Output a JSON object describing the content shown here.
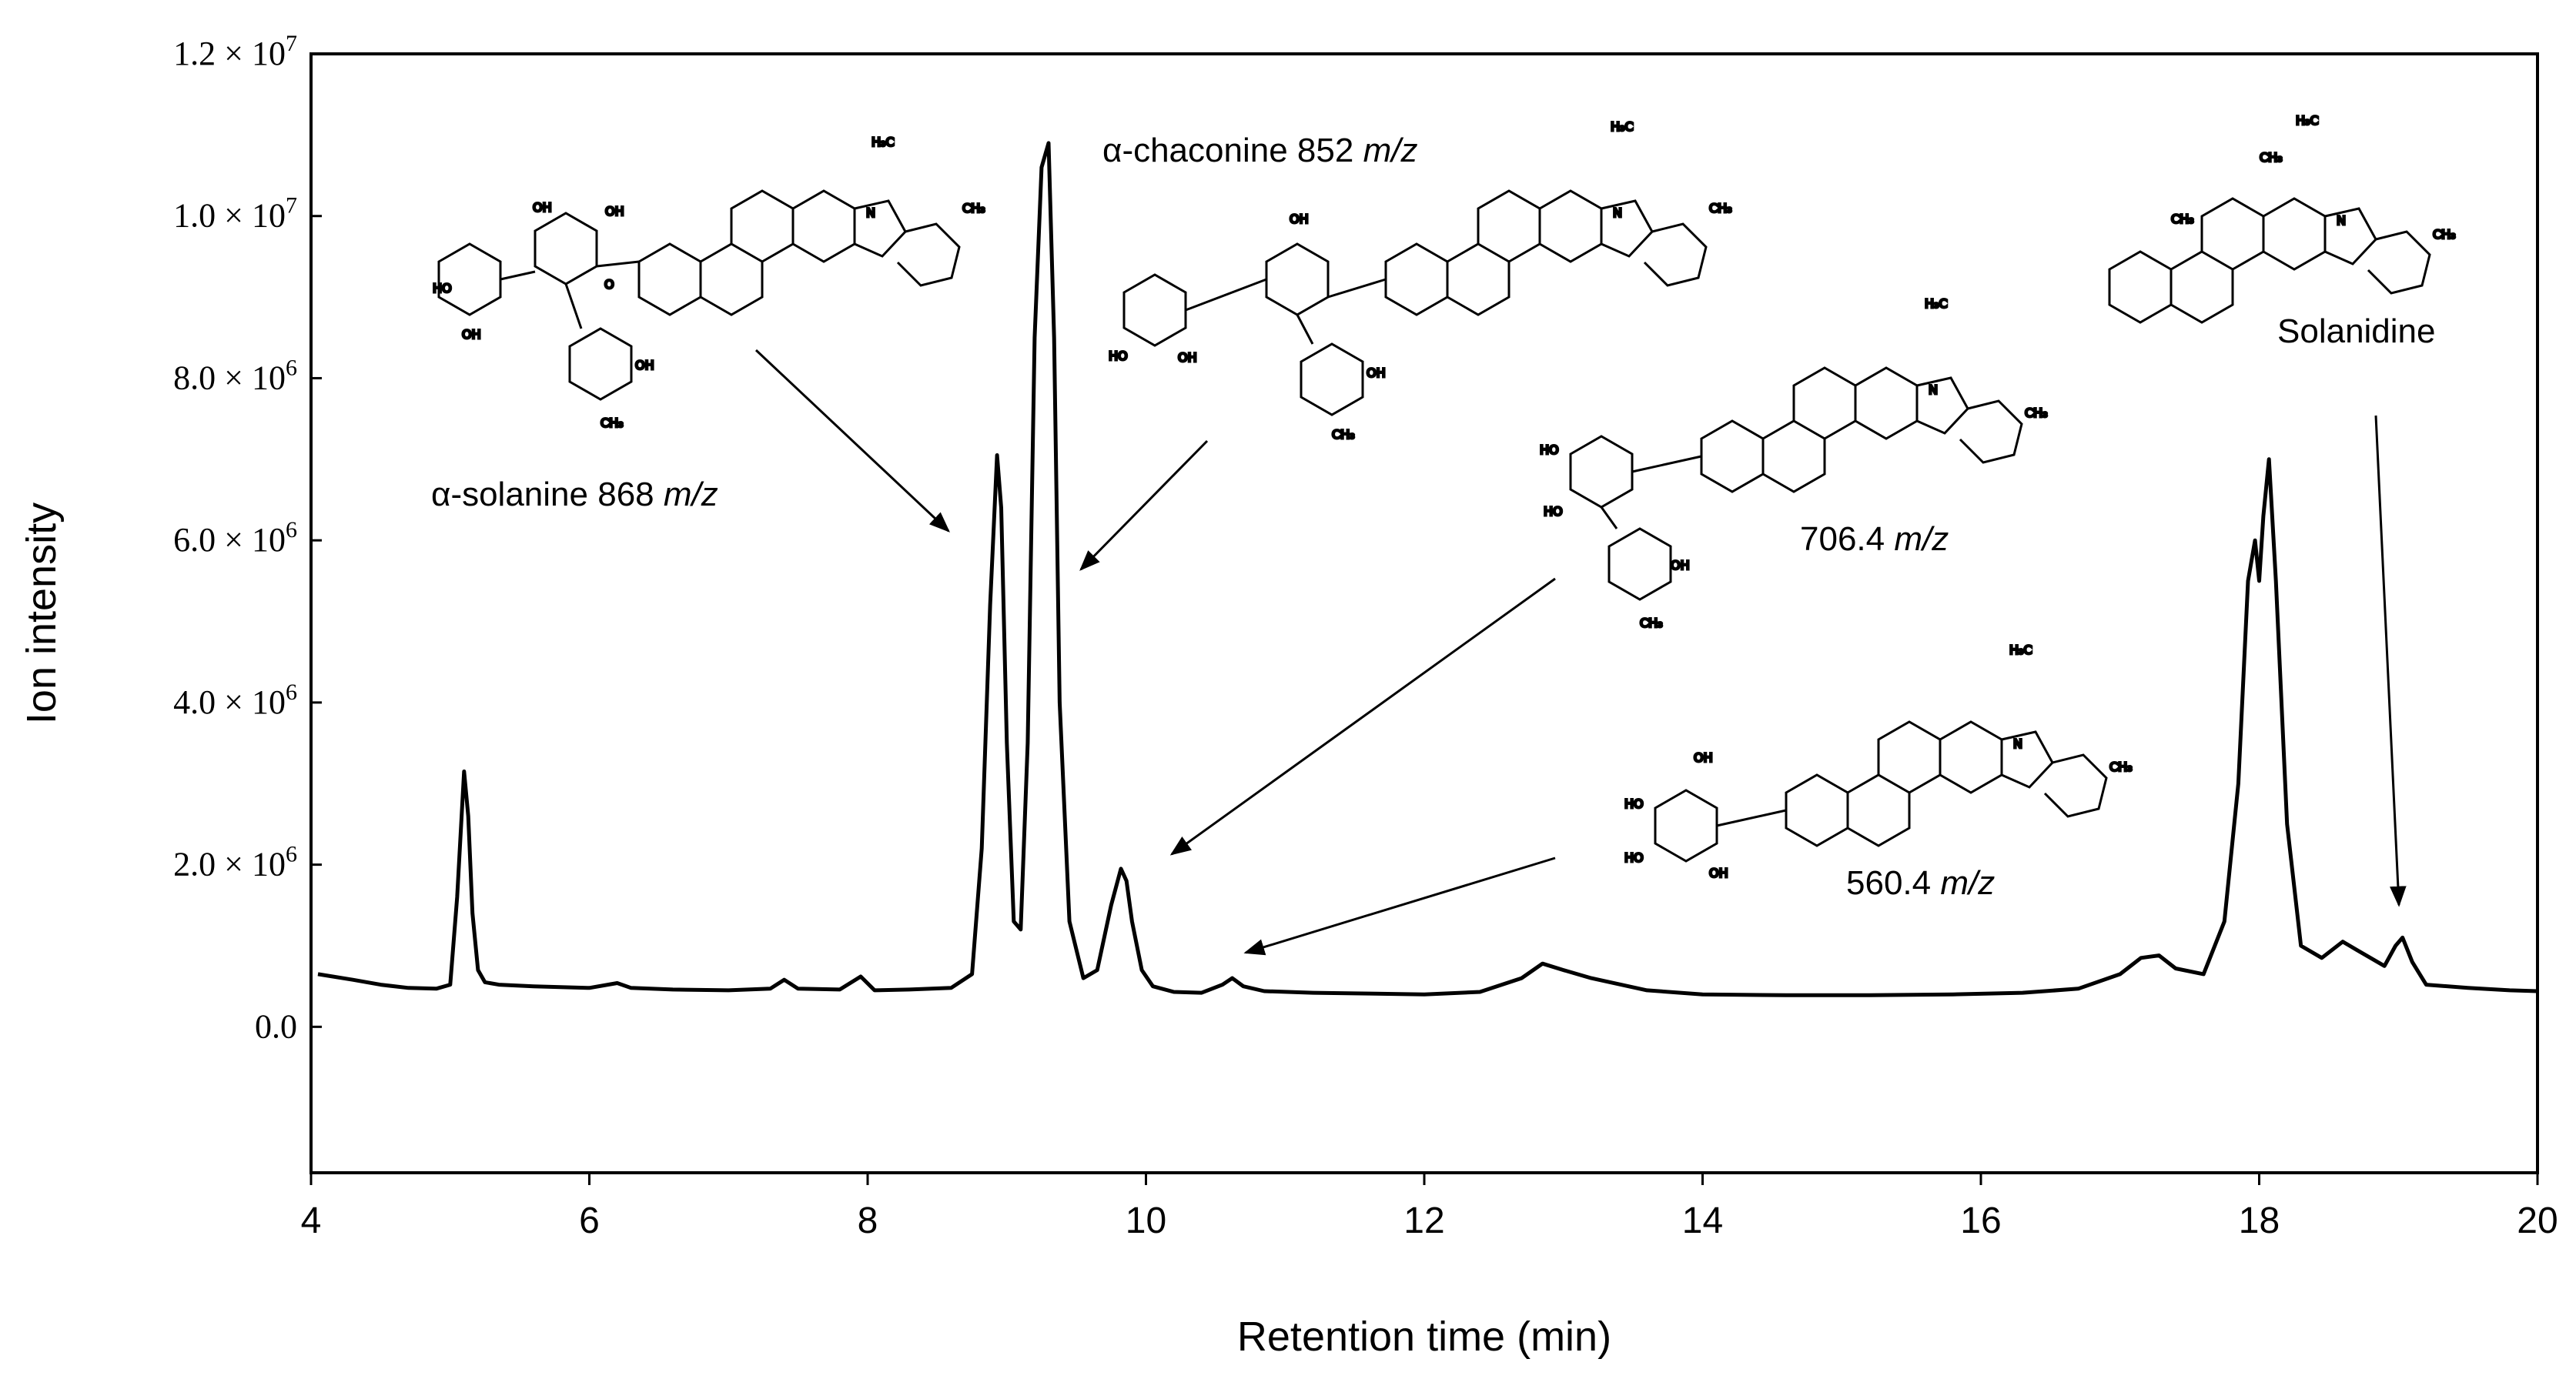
{
  "chart_data": {
    "type": "line",
    "xlabel": "Retention time (min)",
    "ylabel": "Ion intensity",
    "xlim": [
      4,
      20
    ],
    "ylim": [
      -1800000,
      12000000
    ],
    "x_ticks": [
      4,
      6,
      8,
      10,
      12,
      14,
      16,
      18,
      20
    ],
    "y_ticks": [
      {
        "value": 0,
        "label": "0.0"
      },
      {
        "value": 2000000,
        "label": "2.0 × 10",
        "exp": "6"
      },
      {
        "value": 4000000,
        "label": "4.0 × 10",
        "exp": "6"
      },
      {
        "value": 6000000,
        "label": "6.0 × 10",
        "exp": "6"
      },
      {
        "value": 8000000,
        "label": "8.0 × 10",
        "exp": "6"
      },
      {
        "value": 10000000,
        "label": "1.0 × 10",
        "exp": "7"
      },
      {
        "value": 12000000,
        "label": "1.2 × 10",
        "exp": "7"
      }
    ],
    "grid": false,
    "series": [
      {
        "color": "#000000",
        "x": [
          4.05,
          4.3,
          4.5,
          4.7,
          4.9,
          5.0,
          5.05,
          5.1,
          5.13,
          5.16,
          5.2,
          5.25,
          5.35,
          5.6,
          6.0,
          6.2,
          6.3,
          6.6,
          7.0,
          7.3,
          7.4,
          7.5,
          7.8,
          7.95,
          8.05,
          8.3,
          8.6,
          8.75,
          8.82,
          8.88,
          8.93,
          8.96,
          9.0,
          9.05,
          9.1,
          9.15,
          9.2,
          9.25,
          9.3,
          9.34,
          9.38,
          9.45,
          9.55,
          9.65,
          9.75,
          9.82,
          9.86,
          9.9,
          9.97,
          10.05,
          10.2,
          10.4,
          10.55,
          10.62,
          10.7,
          10.85,
          11.2,
          11.6,
          12.0,
          12.4,
          12.7,
          12.85,
          13.0,
          13.2,
          13.6,
          14.0,
          14.6,
          15.2,
          15.8,
          16.3,
          16.7,
          17.0,
          17.15,
          17.28,
          17.4,
          17.6,
          17.75,
          17.85,
          17.92,
          17.97,
          18.0,
          18.03,
          18.07,
          18.12,
          18.2,
          18.3,
          18.45,
          18.6,
          18.7,
          18.8,
          18.9,
          18.98,
          19.03,
          19.1,
          19.2,
          19.5,
          19.8,
          20.0
        ],
        "y": [
          650000,
          580000,
          520000,
          480000,
          470000,
          520000,
          1600000,
          3150000,
          2600000,
          1400000,
          700000,
          550000,
          520000,
          500000,
          480000,
          540000,
          480000,
          460000,
          450000,
          470000,
          580000,
          470000,
          460000,
          620000,
          450000,
          460000,
          480000,
          650000,
          2200000,
          5200000,
          7050000,
          6400000,
          3500000,
          1300000,
          1200000,
          3500000,
          8500000,
          10600000,
          10900000,
          8500000,
          4000000,
          1300000,
          600000,
          700000,
          1500000,
          1950000,
          1800000,
          1300000,
          700000,
          500000,
          430000,
          420000,
          520000,
          600000,
          500000,
          440000,
          420000,
          410000,
          400000,
          430000,
          600000,
          780000,
          700000,
          600000,
          450000,
          400000,
          390000,
          390000,
          400000,
          420000,
          470000,
          650000,
          850000,
          880000,
          720000,
          650000,
          1300000,
          3000000,
          5500000,
          6000000,
          5500000,
          6300000,
          7000000,
          5500000,
          2500000,
          1000000,
          850000,
          1050000,
          950000,
          850000,
          750000,
          1000000,
          1100000,
          800000,
          520000,
          480000,
          450000,
          440000
        ]
      }
    ],
    "annotations": [
      {
        "text": "α-solanine 868 ",
        "unit": "m/z"
      },
      {
        "text": "α-chaconine 852 ",
        "unit": "m/z"
      },
      {
        "text": "706.4 ",
        "unit": "m/z"
      },
      {
        "text": "560.4 ",
        "unit": "m/z"
      },
      {
        "text": "Solanidine",
        "unit": ""
      }
    ],
    "molecule_labels": {
      "ch3": "CH₃",
      "h3c": "H₃C",
      "n": "N",
      "oh": "OH",
      "ho": "HO",
      "o": "O"
    }
  }
}
